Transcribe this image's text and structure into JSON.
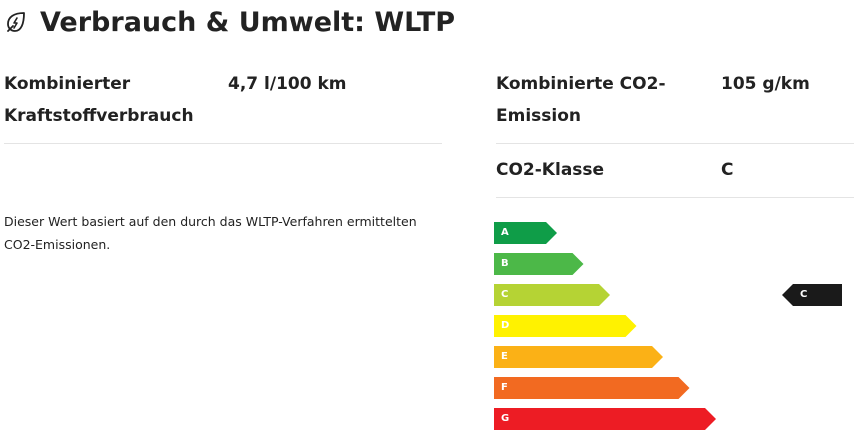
{
  "header": {
    "title": "Verbrauch & Umwelt: WLTP",
    "icon": "leaf-energy-icon"
  },
  "specs": {
    "fuel_label_line1": "Kombinierter",
    "fuel_label_line2": "Kraftstoffverbrauch",
    "fuel_value": "4,7 l/100 km",
    "co2_label_line1": "Kombinierte CO2-",
    "co2_label_line2": "Emission",
    "co2_value": "105 g/km",
    "class_label": "CO2-Klasse",
    "class_value": "C"
  },
  "note": {
    "line1": "Dieser Wert basiert auf den durch das WLTP-Verfahren ermittelten",
    "line2": "CO2-Emissionen."
  },
  "efficiency_scale": {
    "classes": [
      {
        "letter": "A",
        "color": "#0f9d48"
      },
      {
        "letter": "B",
        "color": "#4cb848"
      },
      {
        "letter": "C",
        "color": "#b5d334"
      },
      {
        "letter": "D",
        "color": "#fff200"
      },
      {
        "letter": "E",
        "color": "#fbb116"
      },
      {
        "letter": "F",
        "color": "#f26a21"
      },
      {
        "letter": "G",
        "color": "#ed1c24"
      }
    ],
    "active_class": "C",
    "pointer_color": "#1a1a1a"
  }
}
